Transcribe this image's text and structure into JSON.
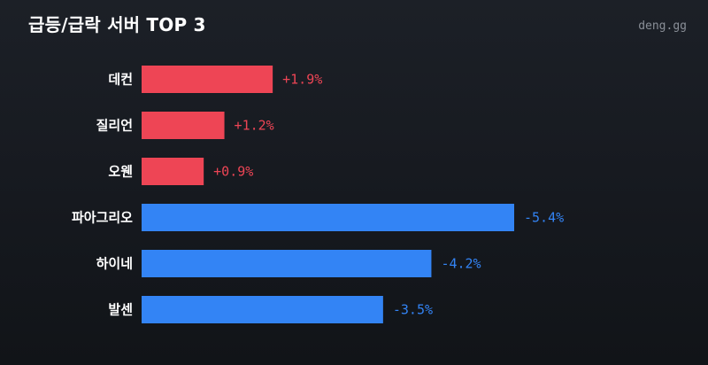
{
  "header": {
    "title": "급등/급락 서버 TOP 3",
    "brand": "deng.gg"
  },
  "colors": {
    "positive": "#ee4555",
    "negative": "#3384f5",
    "background": "#16191f"
  },
  "chart_data": {
    "type": "bar",
    "orientation": "horizontal",
    "title": "급등/급락 서버 TOP 3",
    "xlabel": "",
    "ylabel": "",
    "grid": false,
    "categories": [
      "데컨",
      "질리언",
      "오웬",
      "파아그리오",
      "하이네",
      "발센"
    ],
    "values": [
      1.9,
      1.2,
      0.9,
      -5.4,
      -4.2,
      -3.5
    ],
    "value_labels": [
      "+1.9%",
      "+1.2%",
      "+0.9%",
      "-5.4%",
      "-4.2%",
      "-3.5%"
    ],
    "unit": "%"
  }
}
